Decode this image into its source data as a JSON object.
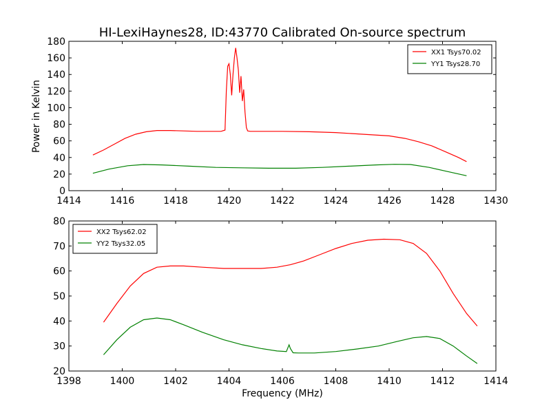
{
  "figure": {
    "title": "HI-LexiHaynes28, ID:43770 Calibrated On-source spectrum",
    "ylabel": "Power in Kelvin",
    "xlabel": "Frequency (MHz)"
  },
  "chart_data": [
    {
      "type": "line",
      "title": "HI-LexiHaynes28, ID:43770 Calibrated On-source spectrum",
      "ylabel": "Power in Kelvin",
      "xlabel": "",
      "xlim": [
        1414,
        1430
      ],
      "ylim": [
        0,
        180
      ],
      "xticks": [
        1414,
        1416,
        1418,
        1420,
        1422,
        1424,
        1426,
        1428,
        1430
      ],
      "yticks": [
        0,
        20,
        40,
        60,
        80,
        100,
        120,
        140,
        160,
        180
      ],
      "grid": false,
      "legend": "top-right",
      "series": [
        {
          "name": "XX1 Tsys70.02",
          "color": "#ff0000",
          "x": [
            1414.9,
            1415.3,
            1415.7,
            1416.1,
            1416.5,
            1416.9,
            1417.3,
            1417.8,
            1418.3,
            1418.8,
            1419.3,
            1419.7,
            1419.85,
            1419.9,
            1419.95,
            1420.0,
            1420.05,
            1420.1,
            1420.15,
            1420.2,
            1420.25,
            1420.3,
            1420.35,
            1420.4,
            1420.45,
            1420.5,
            1420.55,
            1420.6,
            1420.65,
            1420.7,
            1420.8,
            1421.2,
            1422.0,
            1423.0,
            1424.0,
            1425.0,
            1426.0,
            1426.6,
            1427.1,
            1427.6,
            1428.1,
            1428.6,
            1428.9
          ],
          "values": [
            43,
            49,
            56,
            63,
            68,
            71,
            72.5,
            72.5,
            72,
            71.5,
            71.5,
            71.5,
            73,
            120,
            150,
            153,
            140,
            115,
            140,
            160,
            172,
            160,
            145,
            118,
            138,
            108,
            122,
            95,
            76,
            72,
            71.5,
            71.5,
            71.5,
            71,
            70,
            68,
            66,
            63,
            59,
            54,
            47,
            40,
            35
          ]
        },
        {
          "name": "YY1 Tsys28.70",
          "color": "#008000",
          "x": [
            1414.9,
            1415.5,
            1416.2,
            1416.8,
            1417.5,
            1418.5,
            1419.5,
            1420.5,
            1421.5,
            1422.5,
            1423.5,
            1424.5,
            1425.5,
            1426.2,
            1426.8,
            1427.5,
            1428.2,
            1428.9
          ],
          "values": [
            21,
            26,
            30,
            31.5,
            31,
            29.5,
            28,
            27.5,
            27,
            27,
            28,
            29.5,
            31,
            31.8,
            31.5,
            28,
            23,
            18
          ]
        }
      ]
    },
    {
      "type": "line",
      "title": "",
      "ylabel": "",
      "xlabel": "Frequency (MHz)",
      "xlim": [
        1398,
        1414
      ],
      "ylim": [
        20,
        80
      ],
      "xticks": [
        1398,
        1400,
        1402,
        1404,
        1406,
        1408,
        1410,
        1412,
        1414
      ],
      "yticks": [
        20,
        30,
        40,
        50,
        60,
        70,
        80
      ],
      "grid": false,
      "legend": "top-left",
      "series": [
        {
          "name": "XX2 Tsys62.02",
          "color": "#ff0000",
          "x": [
            1399.3,
            1399.8,
            1400.3,
            1400.8,
            1401.3,
            1401.8,
            1402.3,
            1403.0,
            1403.8,
            1404.5,
            1405.2,
            1405.8,
            1406.3,
            1406.8,
            1407.4,
            1408.0,
            1408.6,
            1409.2,
            1409.8,
            1410.4,
            1410.9,
            1411.4,
            1411.9,
            1412.4,
            1412.9,
            1413.3
          ],
          "values": [
            39.5,
            47,
            54,
            59,
            61.5,
            62,
            62,
            61.5,
            61,
            61,
            61,
            61.5,
            62.5,
            64,
            66.5,
            69,
            71,
            72.3,
            72.7,
            72.5,
            71,
            67,
            60,
            51,
            43,
            38
          ]
        },
        {
          "name": "YY2 Tsys32.05",
          "color": "#008000",
          "x": [
            1399.3,
            1399.8,
            1400.3,
            1400.8,
            1401.3,
            1401.8,
            1402.3,
            1403.0,
            1403.8,
            1404.5,
            1405.2,
            1405.8,
            1406.15,
            1406.25,
            1406.3,
            1406.4,
            1406.6,
            1407.2,
            1408.0,
            1408.8,
            1409.6,
            1410.3,
            1410.9,
            1411.4,
            1411.9,
            1412.4,
            1412.9,
            1413.3
          ],
          "values": [
            26.5,
            32.5,
            37.5,
            40.5,
            41.2,
            40.5,
            38.5,
            35.5,
            32.5,
            30.5,
            29,
            28,
            27.8,
            30.5,
            29,
            27.3,
            27.2,
            27.2,
            27.8,
            28.8,
            30,
            31.8,
            33.3,
            33.8,
            33,
            30,
            26,
            23
          ]
        }
      ]
    }
  ]
}
